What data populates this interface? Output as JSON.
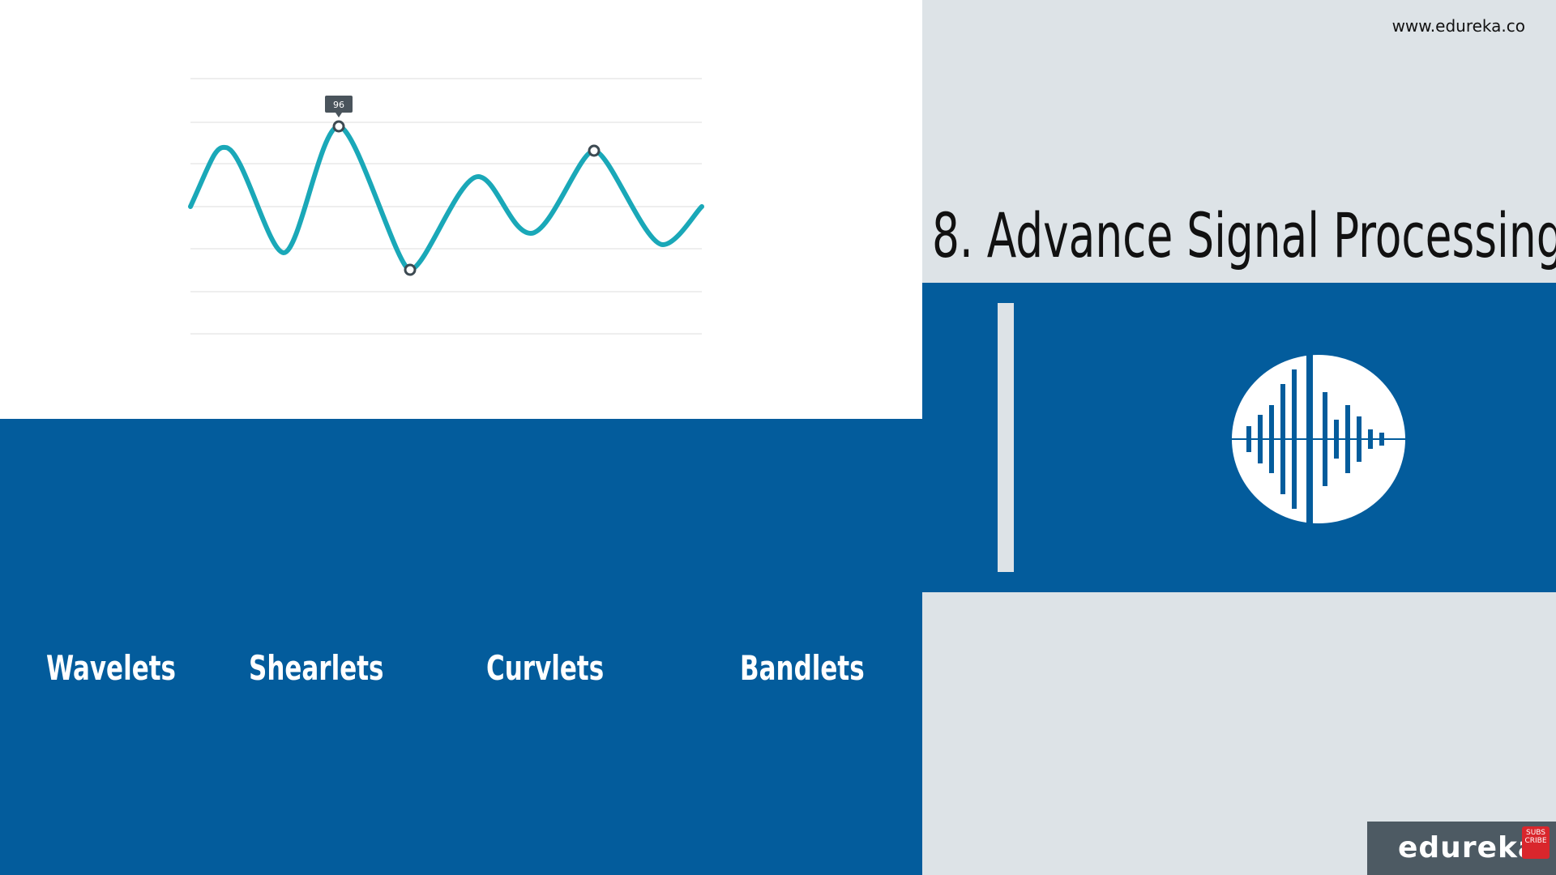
{
  "header": {
    "site_url": "www.edureka.co"
  },
  "slide": {
    "title": "8. Advance Signal Processing"
  },
  "chart": {
    "tooltip_value": "96"
  },
  "terms": [
    "Wavelets",
    "Shearlets",
    "Curvlets",
    "Bandlets"
  ],
  "brand": {
    "name": "edureka!",
    "subscribe_label": "SUBS CRIBE"
  },
  "colors": {
    "accent_blue": "#035c9c",
    "panel_gray": "#dde3e7",
    "wave_teal": "#1aa8b8",
    "brand_box": "#4d5a63",
    "subscribe_red": "#d9262c"
  },
  "icons": {
    "audio": "sound-wave-icon"
  }
}
